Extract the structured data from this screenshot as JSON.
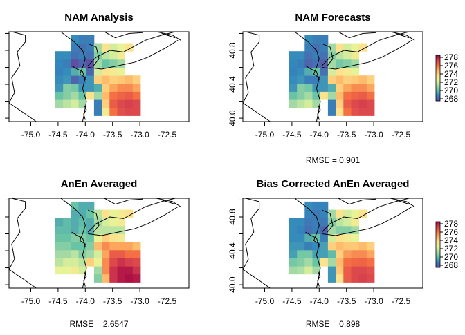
{
  "chart_data": {
    "type": "heatmap",
    "x_ticks": [
      "-75.0",
      "-74.5",
      "-74.0",
      "-73.5",
      "-73.0",
      "-72.5"
    ],
    "x_tick_values": [
      -75.0,
      -74.5,
      -74.0,
      -73.5,
      -73.0,
      -72.5
    ],
    "y_ticks": [
      "40.0",
      "40.4",
      "40.8"
    ],
    "y_tick_values": [
      40.0,
      40.4,
      40.8
    ],
    "xlim": [
      -75.4,
      -72.1
    ],
    "ylim": [
      39.96,
      41.02
    ],
    "colorbar": {
      "labels": [
        "278",
        "276",
        "274",
        "272",
        "270",
        "268"
      ],
      "values": [
        278,
        276,
        274,
        272,
        270,
        268
      ],
      "range": [
        267.5,
        278.5
      ],
      "colors": [
        "#3b5da8",
        "#3288bd",
        "#66c2a5",
        "#abdda4",
        "#e6f598",
        "#fee08b",
        "#fdae61",
        "#f46d43",
        "#d53e4f",
        "#9e0142"
      ]
    },
    "palette": [
      "#5e4fa2",
      "#3288bd",
      "#66c2a5",
      "#abdda4",
      "#e6f598",
      "#fee08b",
      "#fdae61",
      "#f46d43",
      "#d53e4f",
      "#9e0142"
    ],
    "grid": {
      "rows": 10,
      "cols": 12,
      "lon0": -74.55,
      "dlon": 0.142,
      "lat0": 40.03,
      "dlat": 0.095,
      "row_order": "south-to-north"
    },
    "panels": [
      {
        "title": "NAM Analysis",
        "rmse": "",
        "has_y_labels": false,
        "has_colorbar": false,
        "values": [
          [
            null,
            null,
            null,
            null,
            null,
            268.5,
            273.0,
            276.0,
            276.8,
            277.0,
            277.0,
            null
          ],
          [
            271.0,
            271.5,
            272.0,
            271.0,
            null,
            268.5,
            274.0,
            276.5,
            277.0,
            277.2,
            277.0,
            null
          ],
          [
            270.0,
            270.5,
            271.0,
            270.0,
            273.5,
            271.0,
            274.5,
            276.0,
            276.3,
            276.5,
            276.0,
            null
          ],
          [
            269.0,
            270.5,
            270.2,
            269.0,
            269.0,
            269.5,
            274.0,
            275.0,
            275.5,
            275.5,
            275.0,
            null
          ],
          [
            268.8,
            269.0,
            268.0,
            268.5,
            269.0,
            274.0,
            274.5,
            274.0,
            274.2,
            274.5,
            274.0,
            null
          ],
          [
            268.6,
            268.8,
            269.5,
            270.0,
            268.0,
            272.0,
            273.5,
            273.0,
            272.5,
            null,
            null,
            null
          ],
          [
            268.7,
            268.5,
            267.5,
            268.0,
            267.5,
            271.0,
            270.0,
            270.5,
            271.0,
            null,
            null,
            null
          ],
          [
            268.8,
            268.8,
            268.2,
            268.5,
            268.2,
            270.5,
            271.5,
            272.0,
            273.0,
            null,
            null,
            null
          ],
          [
            null,
            null,
            268.5,
            268.2,
            268.5,
            271.0,
            273.5,
            272.0,
            272.5,
            273.5,
            null,
            null
          ],
          [
            null,
            null,
            268.8,
            268.5,
            268.5,
            null,
            null,
            null,
            null,
            null,
            null,
            null
          ]
        ]
      },
      {
        "title": "NAM Forecasts",
        "rmse": "RMSE = 0.901",
        "has_y_labels": true,
        "has_colorbar": true,
        "values": [
          [
            null,
            null,
            null,
            null,
            null,
            268.5,
            273.5,
            276.0,
            276.8,
            277.0,
            277.0,
            null
          ],
          [
            271.0,
            271.5,
            272.0,
            271.0,
            null,
            268.5,
            274.0,
            276.5,
            277.0,
            277.2,
            277.0,
            null
          ],
          [
            270.0,
            270.5,
            271.0,
            270.0,
            273.5,
            271.0,
            274.5,
            276.0,
            276.3,
            276.5,
            276.0,
            null
          ],
          [
            269.0,
            270.5,
            270.2,
            269.0,
            269.0,
            269.5,
            274.0,
            275.0,
            275.5,
            275.5,
            275.0,
            null
          ],
          [
            268.8,
            269.0,
            268.5,
            268.5,
            269.0,
            274.0,
            274.5,
            274.0,
            274.2,
            274.5,
            274.0,
            null
          ],
          [
            268.6,
            268.8,
            269.5,
            270.0,
            268.2,
            272.0,
            273.5,
            273.0,
            272.5,
            null,
            null,
            null
          ],
          [
            268.7,
            268.5,
            268.0,
            268.2,
            267.8,
            271.0,
            270.2,
            270.5,
            271.0,
            null,
            null,
            null
          ],
          [
            268.8,
            268.8,
            268.2,
            268.5,
            268.2,
            270.5,
            271.5,
            272.0,
            273.0,
            null,
            null,
            null
          ],
          [
            null,
            null,
            268.5,
            268.2,
            268.5,
            271.0,
            273.5,
            272.0,
            272.5,
            273.5,
            null,
            null
          ],
          [
            null,
            null,
            268.8,
            268.5,
            268.5,
            null,
            null,
            null,
            null,
            null,
            null,
            null
          ]
        ]
      },
      {
        "title": "AnEn Averaged",
        "rmse": "RMSE = 2.6547",
        "has_y_labels": false,
        "has_colorbar": false,
        "values": [
          [
            null,
            null,
            null,
            null,
            null,
            270.5,
            274.5,
            277.5,
            278.0,
            278.2,
            278.0,
            null
          ],
          [
            272.5,
            272.5,
            273.0,
            272.0,
            null,
            271.0,
            275.5,
            277.5,
            278.0,
            278.0,
            277.5,
            null
          ],
          [
            271.5,
            272.0,
            272.0,
            271.5,
            274.0,
            272.5,
            275.5,
            277.0,
            277.5,
            277.2,
            277.0,
            null
          ],
          [
            271.0,
            271.0,
            271.5,
            270.5,
            271.0,
            272.0,
            275.0,
            276.5,
            276.5,
            276.0,
            276.0,
            null
          ],
          [
            270.5,
            270.5,
            270.0,
            270.0,
            270.5,
            274.5,
            275.5,
            275.0,
            275.0,
            275.0,
            274.5,
            null
          ],
          [
            270.0,
            270.0,
            270.5,
            270.5,
            270.0,
            272.5,
            274.0,
            273.5,
            273.0,
            null,
            null,
            null
          ],
          [
            269.8,
            269.8,
            269.5,
            270.0,
            269.5,
            271.5,
            271.5,
            271.5,
            271.5,
            null,
            null,
            null
          ],
          [
            269.5,
            269.8,
            269.5,
            269.8,
            269.5,
            271.0,
            272.0,
            272.5,
            273.0,
            null,
            null,
            null
          ],
          [
            null,
            null,
            269.5,
            269.5,
            270.0,
            271.5,
            273.5,
            272.5,
            273.0,
            273.5,
            null,
            null
          ],
          [
            null,
            null,
            270.0,
            269.5,
            269.5,
            null,
            null,
            null,
            null,
            null,
            null,
            null
          ]
        ]
      },
      {
        "title": "Bias Corrected AnEn Averaged",
        "rmse": "RMSE = 0.898",
        "has_y_labels": true,
        "has_colorbar": true,
        "values": [
          [
            null,
            null,
            null,
            null,
            null,
            269.0,
            273.5,
            276.5,
            277.0,
            277.2,
            277.0,
            null
          ],
          [
            271.0,
            271.2,
            272.0,
            271.0,
            null,
            269.0,
            274.2,
            276.5,
            277.0,
            277.0,
            276.8,
            null
          ],
          [
            270.2,
            270.5,
            271.0,
            270.0,
            273.5,
            271.0,
            274.5,
            276.0,
            276.2,
            276.3,
            276.0,
            null
          ],
          [
            269.2,
            270.2,
            270.2,
            269.2,
            269.2,
            269.8,
            274.0,
            275.2,
            275.5,
            275.5,
            275.0,
            null
          ],
          [
            269.0,
            269.0,
            268.5,
            268.8,
            269.2,
            274.0,
            274.5,
            274.2,
            274.2,
            274.5,
            274.0,
            null
          ],
          [
            268.8,
            268.8,
            269.5,
            270.0,
            268.5,
            272.0,
            273.5,
            273.0,
            272.5,
            null,
            null,
            null
          ],
          [
            268.8,
            268.6,
            268.2,
            268.5,
            268.0,
            271.0,
            270.5,
            270.5,
            271.0,
            null,
            null,
            null
          ],
          [
            268.8,
            268.8,
            268.4,
            268.5,
            268.4,
            270.5,
            271.5,
            272.0,
            273.0,
            null,
            null,
            null
          ],
          [
            null,
            null,
            268.6,
            268.4,
            268.6,
            271.0,
            273.5,
            272.0,
            272.5,
            273.5,
            null,
            null
          ],
          [
            null,
            null,
            268.8,
            268.6,
            268.6,
            null,
            null,
            null,
            null,
            null,
            null,
            null
          ]
        ]
      }
    ]
  }
}
